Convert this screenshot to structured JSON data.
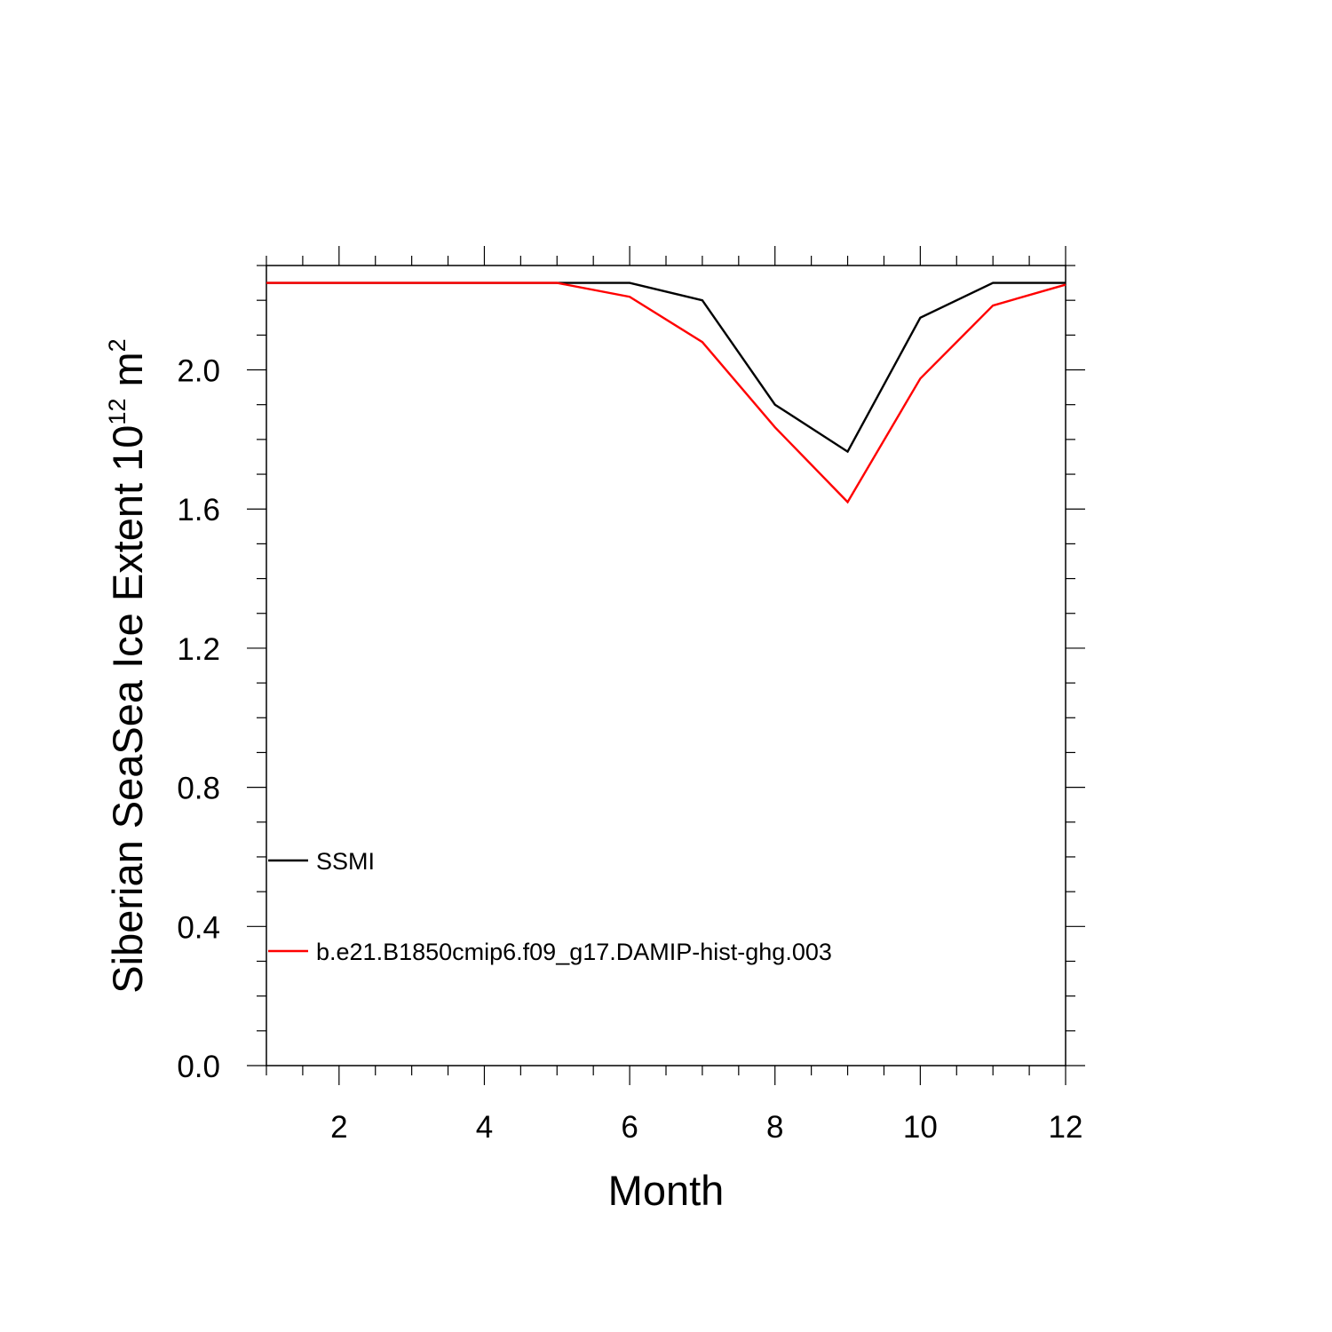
{
  "chart_data": {
    "type": "line",
    "xlabel": "Month",
    "ylabel": {
      "text": "Siberian SeaSea Ice Extent 10",
      "superscript": "12",
      "unit_text": " m",
      "unit_superscript": "2"
    },
    "xlim": [
      1,
      12
    ],
    "ylim": [
      0,
      2.3
    ],
    "xticks": [
      2,
      4,
      6,
      8,
      10,
      12
    ],
    "xtick_labels": [
      "2",
      "4",
      "6",
      "8",
      "10",
      "12"
    ],
    "x_minor_step": 0.5,
    "yticks": [
      0.0,
      0.4,
      0.8,
      1.2,
      1.6,
      2.0
    ],
    "ytick_labels": [
      "0.0",
      "0.4",
      "0.8",
      "1.2",
      "1.6",
      "2.0"
    ],
    "y_minor_step": 0.1,
    "grid": false,
    "legend_position": "bottom-left",
    "x": [
      1,
      2,
      3,
      4,
      5,
      6,
      7,
      8,
      9,
      10,
      11,
      12
    ],
    "series": [
      {
        "name": "SSMI",
        "color": "#000000",
        "values": [
          2.25,
          2.25,
          2.25,
          2.25,
          2.25,
          2.25,
          2.2,
          1.9,
          1.765,
          2.15,
          2.25,
          2.25
        ]
      },
      {
        "name": "b.e21.B1850cmip6.f09_g17.DAMIP-hist-ghg.003",
        "color": "#ff0000",
        "values": [
          2.25,
          2.25,
          2.25,
          2.25,
          2.25,
          2.21,
          2.08,
          1.835,
          1.62,
          1.975,
          2.185,
          2.245
        ]
      }
    ]
  }
}
